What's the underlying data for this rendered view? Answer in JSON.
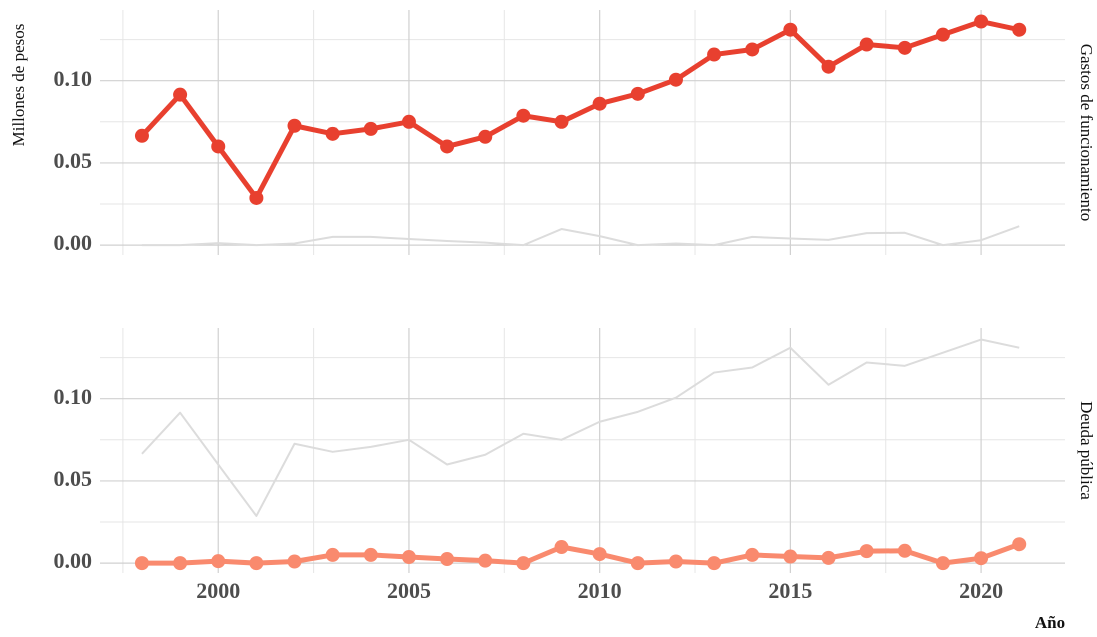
{
  "chart_data": {
    "type": "line",
    "ylabel": "Millones de pesos",
    "xlabel": "Año",
    "x": [
      1998,
      1999,
      2000,
      2001,
      2002,
      2003,
      2004,
      2005,
      2006,
      2007,
      2008,
      2009,
      2010,
      2011,
      2012,
      2013,
      2014,
      2015,
      2016,
      2017,
      2018,
      2019,
      2020,
      2021
    ],
    "series": [
      {
        "name": "Gastos de funcionamiento",
        "color": "#e8402f",
        "values": [
          0.0665,
          0.0915,
          0.06,
          0.0287,
          0.0726,
          0.0677,
          0.0707,
          0.075,
          0.06,
          0.0659,
          0.0787,
          0.075,
          0.086,
          0.092,
          0.1006,
          0.1159,
          0.119,
          0.131,
          0.1085,
          0.122,
          0.12,
          0.128,
          0.136,
          0.131
        ]
      },
      {
        "name": "Deuda pública",
        "color": "#f98a6e",
        "values": [
          0,
          0,
          0.0012,
          0,
          0.001,
          0.005,
          0.005,
          0.0037,
          0.0025,
          0.0015,
          0,
          0.0098,
          0.0055,
          0,
          0.001,
          0,
          0.005,
          0.004,
          0.0032,
          0.0073,
          0.0075,
          0,
          0.003,
          0.0115
        ]
      }
    ],
    "context_color": "#dcdcdc",
    "xlim": [
      1996.9,
      2022.2
    ],
    "xticks": [
      2000,
      2005,
      2010,
      2015,
      2020
    ],
    "xminor": [
      1997.5,
      2002.5,
      2007.5,
      2012.5,
      2017.5
    ],
    "ylim": [
      -0.006,
      0.143
    ],
    "yticks": [
      {
        "value": 0,
        "label": "0.00"
      },
      {
        "value": 0.05,
        "label": "0.05"
      },
      {
        "value": 0.1,
        "label": "0.10"
      }
    ],
    "yminor": [
      0.025,
      0.075,
      0.125
    ],
    "grid": true
  }
}
